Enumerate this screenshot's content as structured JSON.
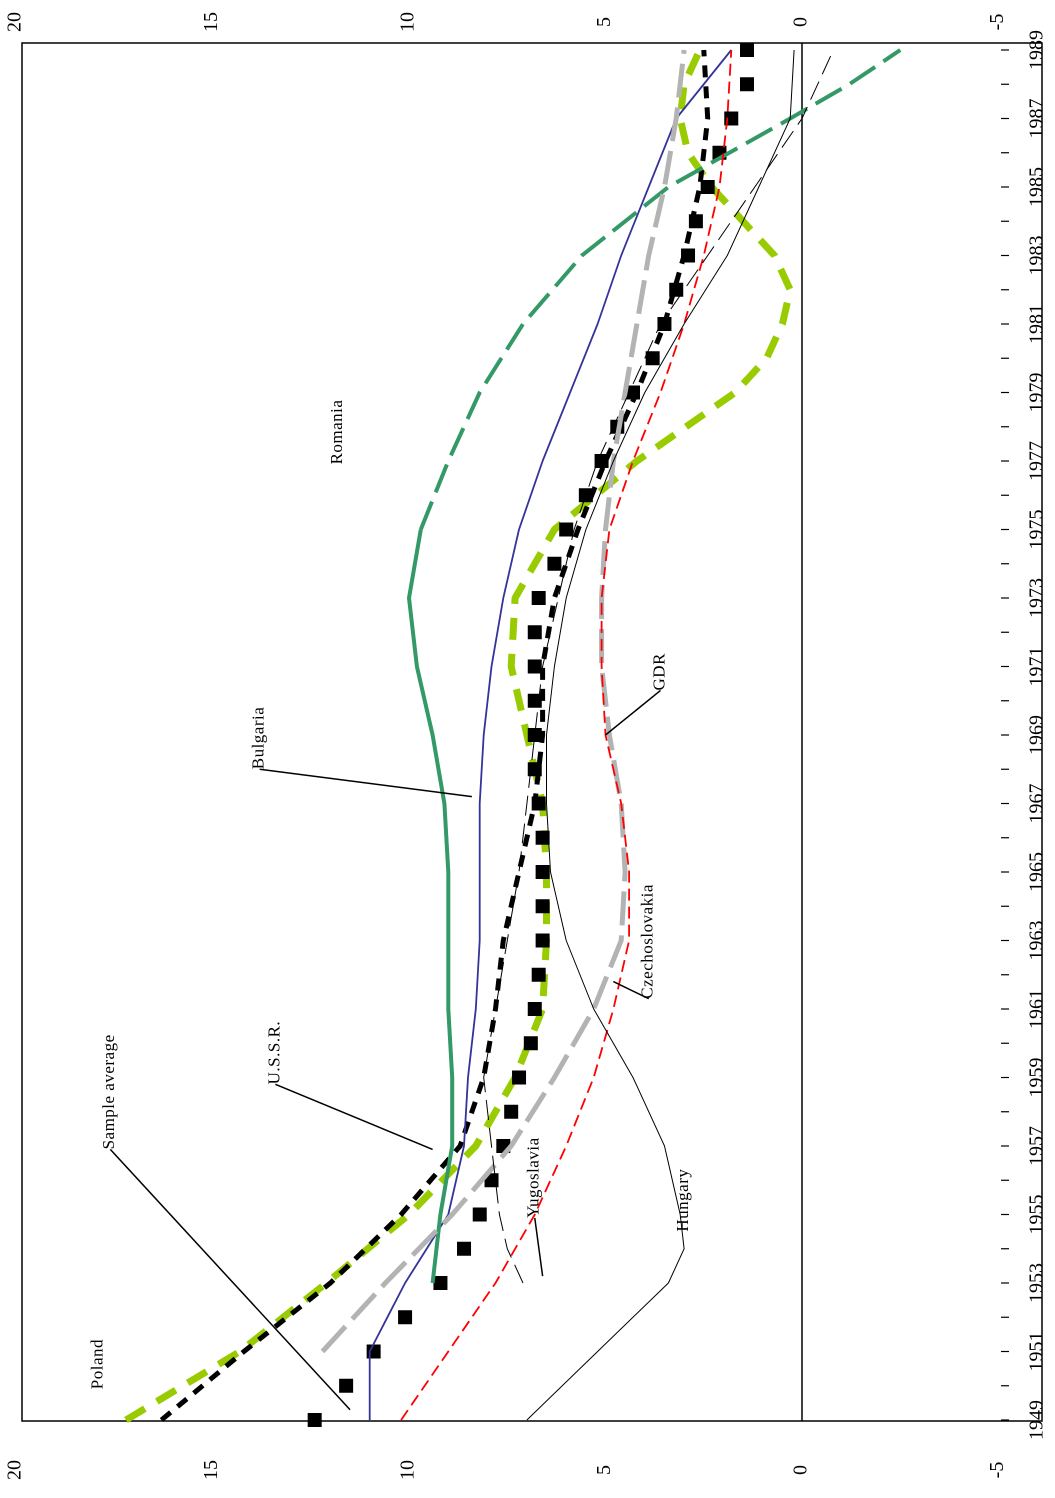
{
  "chart_data": {
    "type": "line",
    "orientation": "rotated-90-clockwise",
    "xlabel": "",
    "ylabel": "",
    "x_ticks": [
      "1949",
      "1951",
      "1953",
      "1955",
      "1957",
      "1959",
      "1961",
      "1963",
      "1965",
      "1967",
      "1969",
      "1971",
      "1973",
      "1975",
      "1977",
      "1979",
      "1981",
      "1983",
      "1985",
      "1987",
      "1989"
    ],
    "y_ticks": [
      "20",
      "15",
      "10",
      "5",
      "0",
      "-5"
    ],
    "xlim": [
      1948,
      1990
    ],
    "ylim": [
      -5,
      20
    ],
    "zero_line": true,
    "grid": false,
    "legend": "none (series labelled directly on the plot)",
    "series": [
      {
        "name": "Poland",
        "color": "#99cc00",
        "style": "thick dashed",
        "x": [
          1949,
          1951,
          1953,
          1955,
          1957,
          1959,
          1961,
          1963,
          1965,
          1967,
          1969,
          1971,
          1973,
          1975,
          1977,
          1979,
          1980,
          1981,
          1982,
          1983,
          1984,
          1985,
          1986,
          1987,
          1988,
          1989
        ],
        "values": [
          17.2,
          14.3,
          12.1,
          10.0,
          8.3,
          7.3,
          6.6,
          6.5,
          6.5,
          6.6,
          7.0,
          7.4,
          7.3,
          6.3,
          4.2,
          1.7,
          0.9,
          0.5,
          0.3,
          0.7,
          1.5,
          2.3,
          2.9,
          3.1,
          3.0,
          2.6
        ]
      },
      {
        "name": "U.S.S.R.",
        "color": "#000000",
        "style": "thick dashed",
        "x": [
          1949,
          1951,
          1953,
          1955,
          1957,
          1959,
          1961,
          1963,
          1965,
          1967,
          1969,
          1971,
          1973,
          1975,
          1977,
          1979,
          1981,
          1983,
          1985,
          1987,
          1989
        ],
        "values": [
          16.3,
          14.2,
          12.0,
          10.2,
          8.7,
          8.1,
          7.8,
          7.6,
          7.2,
          6.8,
          6.6,
          6.6,
          6.3,
          5.7,
          5.0,
          4.2,
          3.5,
          3.0,
          2.6,
          2.4,
          2.5
        ]
      },
      {
        "name": "Sample average",
        "color": "#000000",
        "style": "square markers",
        "x": [
          1949,
          1950,
          1951,
          1952,
          1953,
          1954,
          1955,
          1956,
          1957,
          1958,
          1959,
          1960,
          1961,
          1962,
          1963,
          1964,
          1965,
          1966,
          1967,
          1968,
          1969,
          1970,
          1971,
          1972,
          1973,
          1974,
          1975,
          1976,
          1977,
          1978,
          1979,
          1980,
          1981,
          1982,
          1983,
          1984,
          1985,
          1986,
          1987,
          1988,
          1989
        ],
        "values": [
          12.4,
          11.6,
          10.9,
          10.1,
          9.2,
          8.6,
          8.2,
          7.9,
          7.6,
          7.4,
          7.2,
          6.9,
          6.8,
          6.7,
          6.6,
          6.6,
          6.6,
          6.6,
          6.7,
          6.8,
          6.8,
          6.8,
          6.8,
          6.8,
          6.7,
          6.3,
          6.0,
          5.5,
          5.1,
          4.7,
          4.3,
          3.8,
          3.5,
          3.2,
          2.9,
          2.7,
          2.4,
          2.1,
          1.8,
          1.4,
          1.4
        ]
      },
      {
        "name": "Bulgaria",
        "color": "#333399",
        "style": "solid",
        "x": [
          1949,
          1951,
          1953,
          1955,
          1957,
          1959,
          1961,
          1963,
          1965,
          1967,
          1969,
          1971,
          1973,
          1975,
          1977,
          1979,
          1981,
          1983,
          1985,
          1987,
          1989
        ],
        "values": [
          11.0,
          11.0,
          10.1,
          9.0,
          8.6,
          8.5,
          8.3,
          8.2,
          8.2,
          8.2,
          8.1,
          7.9,
          7.6,
          7.2,
          6.6,
          5.9,
          5.2,
          4.6,
          3.9,
          3.2,
          1.8
        ]
      },
      {
        "name": "Romania",
        "color": "#339966",
        "style": "solid then long dashes",
        "x": [
          1953,
          1955,
          1957,
          1959,
          1961,
          1963,
          1965,
          1967,
          1969,
          1971,
          1973,
          1975,
          1977,
          1979,
          1981,
          1983,
          1985,
          1987,
          1988,
          1989
        ],
        "values": [
          9.4,
          9.2,
          8.9,
          8.9,
          9.0,
          9.0,
          9.0,
          9.1,
          9.4,
          9.8,
          10.0,
          9.7,
          9.0,
          8.2,
          7.1,
          5.6,
          3.4,
          0.3,
          -1.2,
          -2.5
        ]
      },
      {
        "name": "GDR",
        "color": "#b3b3b3",
        "style": "thick long dashes",
        "x": [
          1951,
          1953,
          1955,
          1957,
          1959,
          1961,
          1963,
          1965,
          1967,
          1969,
          1971,
          1973,
          1975,
          1977,
          1979,
          1981,
          1983,
          1985,
          1987,
          1989
        ],
        "values": [
          12.2,
          10.6,
          8.9,
          7.4,
          6.3,
          5.3,
          4.6,
          4.5,
          4.6,
          4.9,
          5.1,
          5.1,
          5.0,
          4.8,
          4.5,
          4.2,
          3.9,
          3.5,
          3.2,
          3.0
        ]
      },
      {
        "name": "Czechoslovakia",
        "color": "#ff0000",
        "style": "dashed",
        "x": [
          1949,
          1951,
          1953,
          1955,
          1957,
          1959,
          1961,
          1963,
          1965,
          1967,
          1969,
          1971,
          1973,
          1975,
          1977,
          1979,
          1981,
          1983,
          1985,
          1987,
          1989
        ],
        "values": [
          10.2,
          9.0,
          7.8,
          6.8,
          6.0,
          5.3,
          4.8,
          4.4,
          4.4,
          4.6,
          5.0,
          5.1,
          5.1,
          4.9,
          4.3,
          3.6,
          3.0,
          2.5,
          2.1,
          1.9,
          1.8
        ]
      },
      {
        "name": "Yugoslavia",
        "color": "#000000",
        "style": "thin long dashes",
        "x": [
          1953,
          1954,
          1955,
          1957,
          1959,
          1961,
          1963,
          1965,
          1967,
          1969,
          1971,
          1973,
          1975,
          1977,
          1979,
          1981,
          1983,
          1985,
          1987,
          1989
        ],
        "values": [
          7.1,
          7.5,
          7.7,
          7.9,
          8.1,
          7.8,
          7.5,
          7.2,
          7.0,
          6.8,
          6.6,
          6.2,
          5.8,
          5.2,
          4.4,
          3.6,
          2.4,
          1.2,
          0.0,
          -0.8
        ]
      },
      {
        "name": "Hungary",
        "color": "#000000",
        "style": "thin solid",
        "x": [
          1949,
          1951,
          1953,
          1954,
          1955,
          1957,
          1959,
          1961,
          1963,
          1965,
          1967,
          1969,
          1971,
          1973,
          1975,
          1977,
          1979,
          1981,
          1983,
          1985,
          1987,
          1989
        ],
        "values": [
          7.0,
          5.2,
          3.4,
          3.0,
          3.1,
          3.5,
          4.3,
          5.3,
          6.0,
          6.4,
          6.5,
          6.5,
          6.3,
          6.0,
          5.5,
          4.8,
          4.0,
          3.0,
          1.9,
          1.1,
          0.3,
          0.2
        ]
      }
    ],
    "annotations": [
      {
        "text": "Poland",
        "from": [
          1949.9,
          17.9
        ],
        "to": [
          1949.9,
          17.9
        ]
      },
      {
        "text": "Sample average",
        "from": [
          1956.9,
          17.6
        ],
        "to": [
          1949.3,
          11.5
        ]
      },
      {
        "text": "U.S.S.R.",
        "from": [
          1958.8,
          13.4
        ],
        "to": [
          1956.9,
          9.4
        ]
      },
      {
        "text": "Bulgaria",
        "from": [
          1968.0,
          13.8
        ],
        "to": [
          1967.2,
          8.4
        ]
      },
      {
        "text": "Romania",
        "from": [
          1976.9,
          11.8
        ],
        "to": [
          1976.9,
          11.8
        ]
      },
      {
        "text": "Yugoslavia",
        "from": [
          1954.9,
          6.8
        ],
        "to": [
          1953.2,
          6.6
        ]
      },
      {
        "text": "Hungary",
        "from": [
          1954.5,
          3.0
        ],
        "to": [
          1954.5,
          3.0
        ]
      },
      {
        "text": "GDR",
        "from": [
          1970.3,
          3.6
        ],
        "to": [
          1969.0,
          5.0
        ]
      },
      {
        "text": "Czechoslovakia",
        "from": [
          1961.3,
          3.9
        ],
        "to": [
          1961.8,
          4.8
        ]
      }
    ]
  }
}
